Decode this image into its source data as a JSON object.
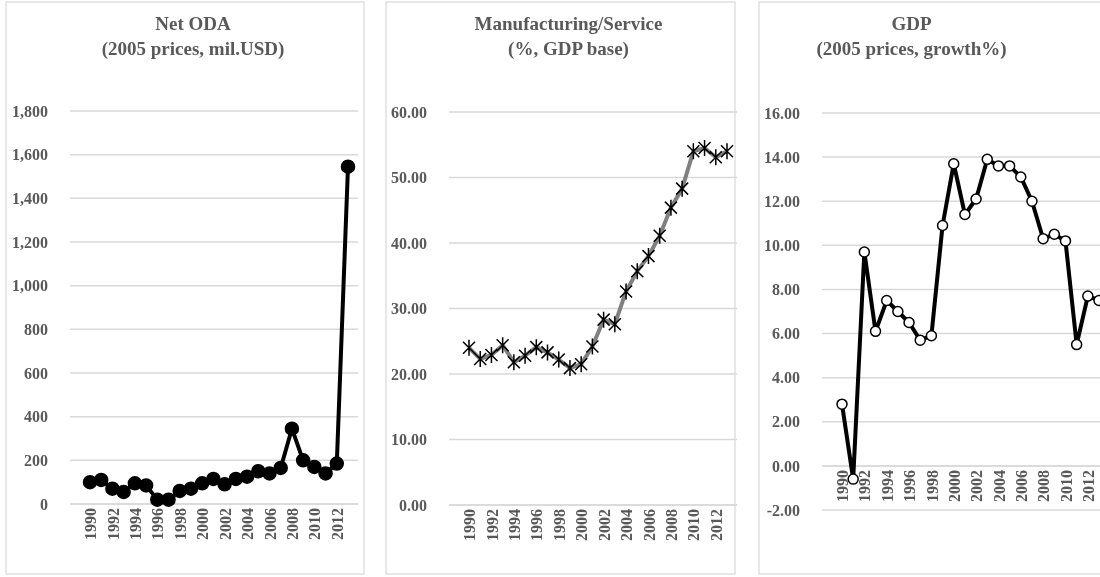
{
  "chart_data": [
    {
      "type": "line",
      "title": "Net ODA",
      "subtitle": "(2005 prices, mil.USD)",
      "categories": [
        "1990",
        null,
        "1992",
        null,
        "1994",
        null,
        "1996",
        null,
        "1998",
        null,
        "2000",
        null,
        "2002",
        null,
        "2004",
        null,
        "2006",
        null,
        "2008",
        null,
        "2010",
        null,
        "2012",
        null
      ],
      "series": [
        {
          "color": "#000000",
          "values": [
            100,
            110,
            70,
            55,
            95,
            85,
            20,
            20,
            60,
            70,
            95,
            115,
            90,
            115,
            125,
            150,
            140,
            165,
            345,
            200,
            170,
            140,
            185,
            1545
          ]
        }
      ],
      "ylim": [
        0,
        1800
      ],
      "yticks": [
        0,
        200,
        400,
        600,
        800,
        {
          "value": 1000,
          "label": "1,000"
        },
        {
          "value": 1200,
          "label": "1,200"
        },
        {
          "value": 1400,
          "label": "1,400"
        },
        {
          "value": 1600,
          "label": "1,600"
        },
        {
          "value": 1800,
          "label": "1,800"
        }
      ],
      "grid": "y",
      "marker": "circle"
    },
    {
      "type": "line",
      "title": "Manufacturing/Service",
      "subtitle": "(%, GDP base)",
      "categories": [
        "1990",
        null,
        "1992",
        null,
        "1994",
        null,
        "1996",
        null,
        "1998",
        null,
        "2000",
        null,
        "2002",
        null,
        "2004",
        null,
        "2006",
        null,
        "2008",
        null,
        "2010",
        null,
        "2012",
        null
      ],
      "series": [
        {
          "color": "#808080",
          "values": [
            24.0,
            22.3,
            22.9,
            24.4,
            21.8,
            22.8,
            24.1,
            23.3,
            22.2,
            20.9,
            21.5,
            24.2,
            28.3,
            27.6,
            32.6,
            35.7,
            38.0,
            41.1,
            45.4,
            48.3,
            54.0,
            54.5,
            53.1,
            54.0
          ]
        }
      ],
      "ylim": [
        0,
        60
      ],
      "yticks": [
        {
          "value": 0,
          "label": "0.00"
        },
        {
          "value": 10,
          "label": "10.00"
        },
        {
          "value": 20,
          "label": "20.00"
        },
        {
          "value": 30,
          "label": "30.00"
        },
        {
          "value": 40,
          "label": "40.00"
        },
        {
          "value": 50,
          "label": "50.00"
        },
        {
          "value": 60,
          "label": "60.00"
        }
      ],
      "grid": "y",
      "marker": "cross"
    },
    {
      "type": "line",
      "title": "GDP",
      "subtitle": "(2005 prices, growth%)",
      "categories": [
        "1990",
        null,
        "1992",
        null,
        "1994",
        null,
        "1996",
        null,
        "1998",
        null,
        "2000",
        null,
        "2002",
        null,
        "2004",
        null,
        "2006",
        null,
        "2008",
        null,
        "2010",
        null,
        "2012",
        null
      ],
      "series": [
        {
          "color": "#000000",
          "values": [
            2.8,
            -0.6,
            9.7,
            6.1,
            7.5,
            7.0,
            6.5,
            5.7,
            5.9,
            10.9,
            13.7,
            11.4,
            12.1,
            13.9,
            13.6,
            13.6,
            13.1,
            12.0,
            10.3,
            10.5,
            10.2,
            5.5,
            7.7,
            7.5
          ]
        }
      ],
      "ylim": [
        -2,
        16
      ],
      "yticks": [
        {
          "value": -2,
          "label": "-2.00"
        },
        {
          "value": 0,
          "label": "0.00"
        },
        {
          "value": 2,
          "label": "2.00"
        },
        {
          "value": 4,
          "label": "4.00"
        },
        {
          "value": 6,
          "label": "6.00"
        },
        {
          "value": 8,
          "label": "8.00"
        },
        {
          "value": 10,
          "label": "10.00"
        },
        {
          "value": 12,
          "label": "12.00"
        },
        {
          "value": 14,
          "label": "14.00"
        },
        {
          "value": 16,
          "label": "16.00"
        }
      ],
      "grid": "y",
      "marker": "circle"
    }
  ]
}
